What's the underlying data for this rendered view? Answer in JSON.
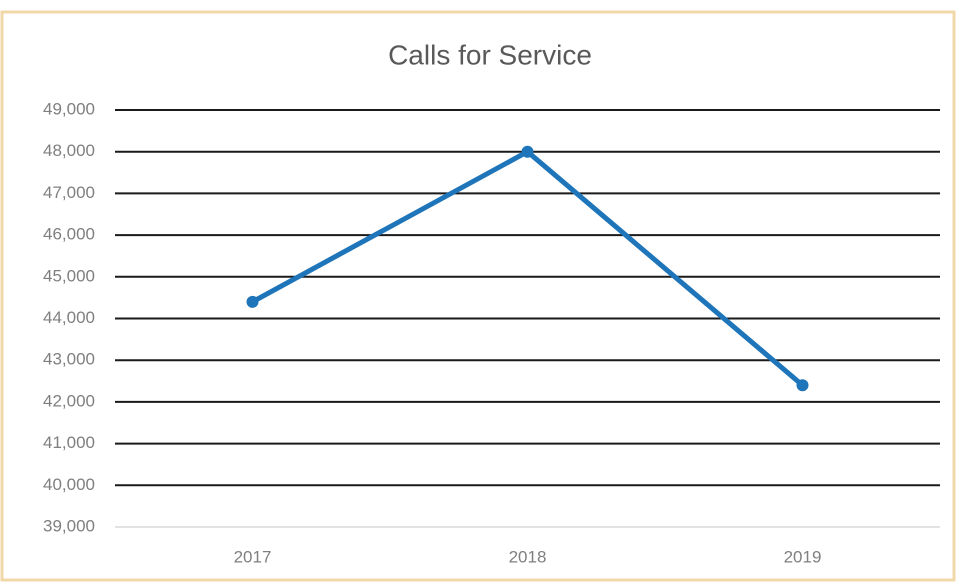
{
  "chart_data": {
    "type": "line",
    "title": "Calls for Service",
    "categories": [
      "2017",
      "2018",
      "2019"
    ],
    "series": [
      {
        "name": "Calls for Service",
        "color": "#1f75b9",
        "values": [
          44400,
          48000,
          42400
        ]
      }
    ],
    "ylim": [
      39000,
      49000
    ],
    "yticks": [
      {
        "value": 39000,
        "label": "39,000"
      },
      {
        "value": 40000,
        "label": "40,000"
      },
      {
        "value": 41000,
        "label": "41,000"
      },
      {
        "value": 42000,
        "label": "42,000"
      },
      {
        "value": 43000,
        "label": "43,000"
      },
      {
        "value": 44000,
        "label": "44,000"
      },
      {
        "value": 45000,
        "label": "45,000"
      },
      {
        "value": 46000,
        "label": "46,000"
      },
      {
        "value": 47000,
        "label": "47,000"
      },
      {
        "value": 48000,
        "label": "48,000"
      },
      {
        "value": 49000,
        "label": "49,000"
      }
    ],
    "grid": true
  }
}
